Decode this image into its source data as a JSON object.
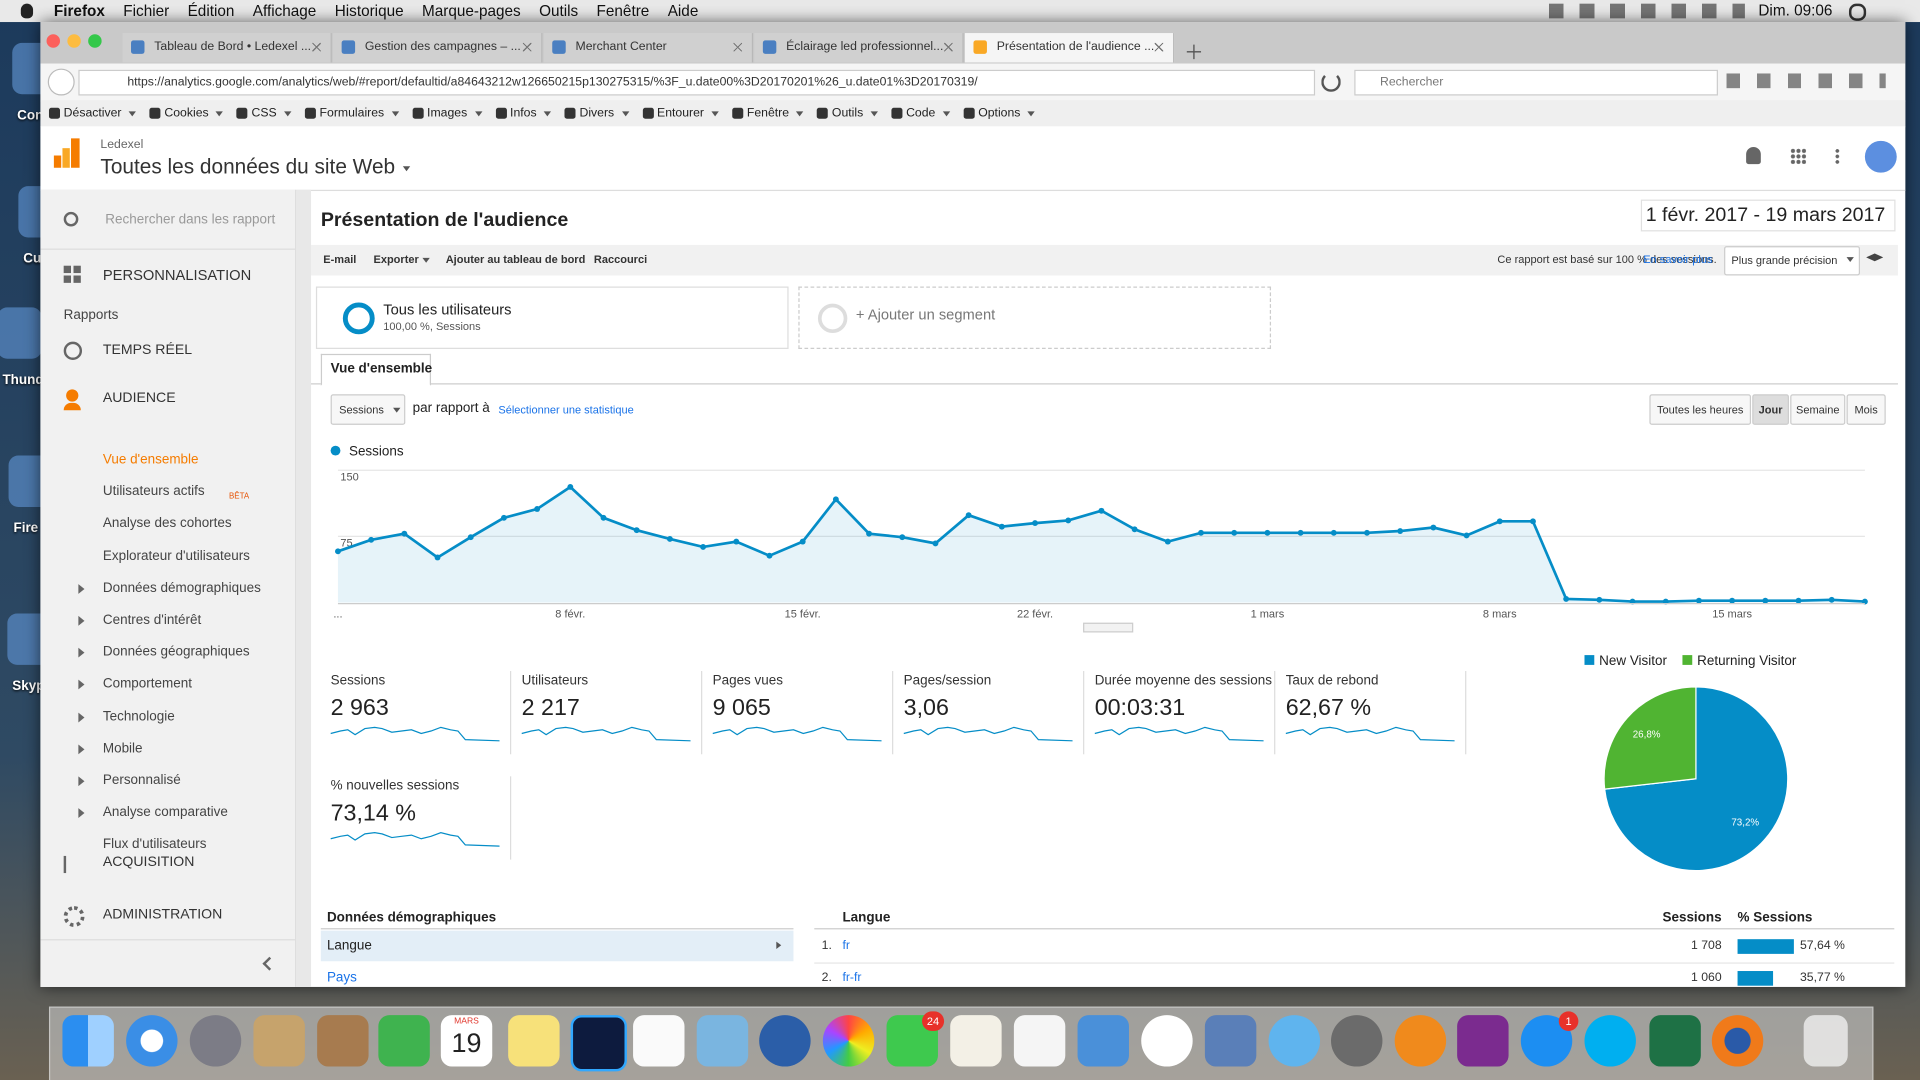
{
  "menubar": {
    "app": "Firefox",
    "items": [
      "Fichier",
      "Édition",
      "Affichage",
      "Historique",
      "Marque-pages",
      "Outils",
      "Fenêtre",
      "Aide"
    ],
    "clock": "Dim. 09:06"
  },
  "desktop": {
    "icons": [
      "Con",
      "Cu",
      "Thund",
      "Fire",
      "Skyp"
    ]
  },
  "browser": {
    "tabs": [
      "Tableau de Bord • Ledexel ...",
      "Gestion des campagnes – ...",
      "Merchant Center",
      "Éclairage led professionnel...",
      "Présentation de l'audience ..."
    ],
    "active_tab": 4,
    "url": "https://analytics.google.com/analytics/web/#report/defaultid/a84643212w126650215p130275315/%3F_u.date00%3D20170201%26_u.date01%3D20170319/",
    "search": "Rechercher",
    "devtools": [
      "Désactiver",
      "Cookies",
      "CSS",
      "Formulaires",
      "Images",
      "Infos",
      "Divers",
      "Entourer",
      "Fenêtre",
      "Outils",
      "Code",
      "Options"
    ]
  },
  "ga": {
    "account": "Ledexel",
    "property": "Toutes les données du site Web"
  },
  "sidebar": {
    "search": "Rechercher dans les rapport",
    "personalization": "PERSONNALISATION",
    "reports": "Rapports",
    "realtime": "TEMPS RÉEL",
    "audience": "AUDIENCE",
    "audience_items": [
      {
        "label": "Vue d'ensemble"
      },
      {
        "label": "Utilisateurs actifs"
      },
      {
        "label": "Analyse des cohortes"
      },
      {
        "label": "Explorateur d'utilisateurs"
      },
      {
        "label": "Données démographiques",
        "expandable": true
      },
      {
        "label": "Centres d'intérêt",
        "expandable": true
      },
      {
        "label": "Données géographiques",
        "expandable": true
      },
      {
        "label": "Comportement",
        "expandable": true
      },
      {
        "label": "Technologie",
        "expandable": true
      },
      {
        "label": "Mobile",
        "expandable": true
      },
      {
        "label": "Personnalisé",
        "expandable": true
      },
      {
        "label": "Analyse comparative",
        "expandable": true
      },
      {
        "label": "Flux d'utilisateurs"
      }
    ],
    "active_item": 0,
    "beta": "BÊTA",
    "acquisition": "ACQUISITION",
    "admin": "ADMINISTRATION"
  },
  "report": {
    "title": "Présentation de l'audience",
    "date_range": "1 févr. 2017 - 19 mars 2017",
    "actions": [
      "E-mail",
      "Exporter",
      "Ajouter au tableau de bord",
      "Raccourci"
    ],
    "sampling_note": "Ce rapport est basé sur 100 % des sessions.",
    "learn_more": "En savoir plus",
    "precision": "Plus grande précision",
    "segment": {
      "name": "Tous les utilisateurs",
      "detail": "100,00 %, Sessions"
    },
    "add_segment": "+ Ajouter un segment",
    "tab": "Vue d'ensemble",
    "metric_select": "Sessions",
    "compare": "par rapport à",
    "select_metric": "Sélectionner une statistique",
    "granularity": [
      "Toutes les heures",
      "Jour",
      "Semaine",
      "Mois"
    ],
    "active_granularity": 1
  },
  "chart_data": [
    {
      "type": "line",
      "categories": [
        "...",
        null,
        null,
        null,
        null,
        null,
        null,
        "8 févr.",
        null,
        null,
        null,
        null,
        null,
        null,
        "15 févr.",
        null,
        null,
        null,
        null,
        null,
        null,
        "22 févr.",
        null,
        null,
        null,
        null,
        null,
        null,
        "1 mars",
        null,
        null,
        null,
        null,
        null,
        null,
        "8 mars",
        null,
        null,
        null,
        null,
        null,
        null,
        "15 mars",
        null,
        null,
        null,
        null
      ],
      "series": [
        {
          "name": "Sessions",
          "color": "#058dc7",
          "values": [
            58,
            71,
            78,
            51,
            74,
            96,
            106,
            131,
            96,
            82,
            72,
            63,
            69,
            53,
            69,
            117,
            78,
            74,
            67,
            99,
            86,
            90,
            93,
            104,
            83,
            69,
            79,
            79,
            79,
            79,
            79,
            79,
            81,
            85,
            76,
            92,
            92,
            4,
            3,
            1,
            1,
            2,
            2,
            2,
            2,
            3,
            1
          ]
        }
      ],
      "ylim": [
        0,
        150
      ],
      "yticks": [
        75,
        150
      ],
      "grid": true
    },
    {
      "type": "pie",
      "categories": [
        "New Visitor",
        "Returning Visitor"
      ],
      "values": [
        73.2,
        26.8
      ],
      "value_labels": [
        "73,2%",
        "26,8%"
      ],
      "colors": [
        "#058dc7",
        "#50b432"
      ]
    }
  ],
  "metrics": [
    {
      "label": "Sessions",
      "value": "2 963"
    },
    {
      "label": "Utilisateurs",
      "value": "2 217"
    },
    {
      "label": "Pages vues",
      "value": "9 065"
    },
    {
      "label": "Pages/session",
      "value": "3,06"
    },
    {
      "label": "Durée moyenne des sessions",
      "value": "00:03:31"
    },
    {
      "label": "Taux de rebond",
      "value": "62,67 %"
    },
    {
      "label": "% nouvelles sessions",
      "value": "73,14 %"
    }
  ],
  "demographics": {
    "title": "Données démographiques",
    "items": [
      "Langue",
      "Pays"
    ],
    "selected_item": 0,
    "table": {
      "headers": [
        "Langue",
        "Sessions",
        "% Sessions"
      ],
      "rows": [
        {
          "rank": "1.",
          "name": "fr",
          "sessions": "1 708",
          "share": {
            "value": 57.64,
            "label": "57,64 %"
          }
        },
        {
          "rank": "2.",
          "name": "fr-fr",
          "sessions": "1 060",
          "share": {
            "value": 35.77,
            "label": "35,77 %"
          }
        }
      ]
    }
  },
  "dock": {
    "calendar_month": "MARS",
    "calendar_day": "19",
    "badges": [
      "24",
      "1"
    ]
  }
}
